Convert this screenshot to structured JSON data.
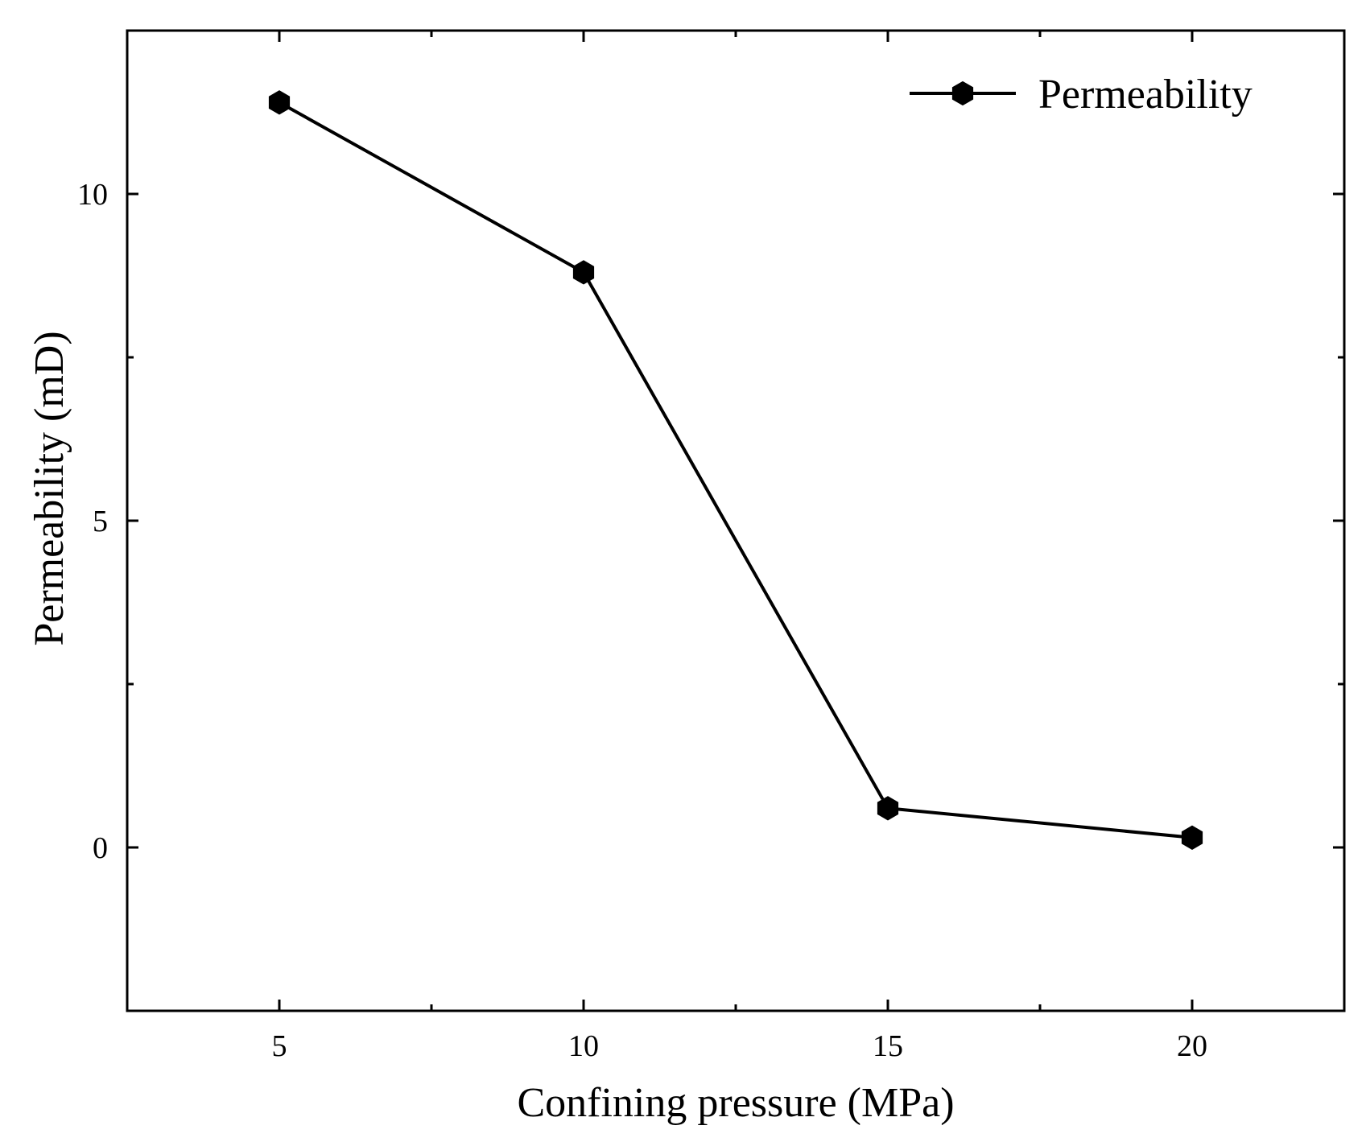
{
  "chart_data": {
    "type": "line",
    "title": "",
    "xlabel": "Confining pressure (MPa)",
    "ylabel": "Permeability (mD)",
    "xlim": [
      2.5,
      22.5
    ],
    "ylim": [
      -2.5,
      12.5
    ],
    "xticks": [
      5,
      10,
      15,
      20
    ],
    "xtick_labels": [
      "5",
      "10",
      "15",
      "20"
    ],
    "xminor": [
      7.5,
      12.5,
      17.5
    ],
    "yticks": [
      0,
      5,
      10
    ],
    "ytick_labels": [
      "0",
      "5",
      "10"
    ],
    "yminor": [
      2.5,
      7.5
    ],
    "grid": false,
    "legend_position": "top-right",
    "series": [
      {
        "name": "Permeability",
        "marker": "hexagon",
        "color": "#000000",
        "x": [
          5,
          10,
          15,
          20
        ],
        "y": [
          11.4,
          8.8,
          0.6,
          0.15
        ]
      }
    ]
  }
}
